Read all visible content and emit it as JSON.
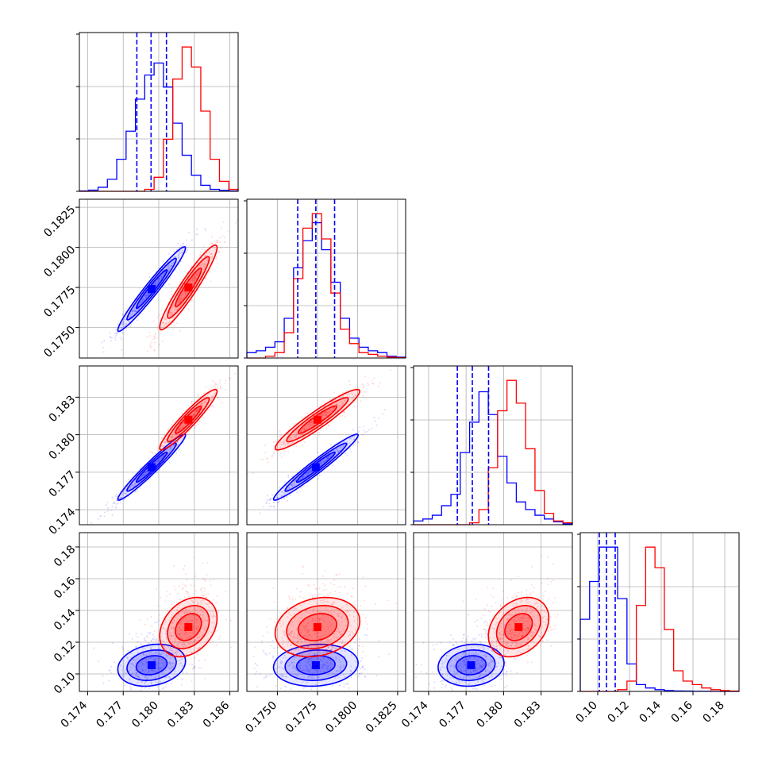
{
  "figure": {
    "colors": {
      "series_a": "#0000ff",
      "series_b": "#ff0000",
      "grid": "#b0b0b0"
    }
  },
  "chart_data": {
    "type": "corner",
    "grid": true,
    "parameters": 4,
    "series": [
      {
        "color": "#0000ff",
        "means": [
          0.1794,
          0.1774,
          0.1774,
          0.1055
        ],
        "sigmas": [
          0.0013,
          0.0012,
          0.0012,
          0.006
        ],
        "quantiles": [
          [
            0.17815,
            0.17935,
            0.18065
          ],
          [
            0.17627,
            0.1774,
            0.17857
          ],
          [
            0.1763,
            0.1775,
            0.1788
          ],
          [
            0.101,
            0.1055,
            0.111
          ]
        ],
        "correlations": {
          "1_0": 0.97,
          "2_0": 0.97,
          "2_1": 0.97,
          "3_0": 0.2,
          "3_1": 0.1,
          "3_2": 0.1
        },
        "hist": [
          [
            0.2,
            0.6,
            2,
            6,
            16,
            30,
            46,
            58,
            64,
            52,
            34,
            18,
            8,
            3,
            1,
            0.5,
            0.2
          ],
          [
            3,
            4,
            6,
            9,
            22,
            50,
            65,
            75,
            60,
            42,
            22,
            11,
            6,
            4,
            3,
            1,
            0.5
          ],
          [
            2,
            3,
            5,
            10,
            16,
            38,
            54,
            70,
            58,
            36,
            22,
            12,
            8,
            5,
            3,
            1.5,
            0.5
          ],
          [
            42,
            64,
            84,
            84,
            54,
            16,
            4,
            2,
            1,
            0.5,
            0.3,
            0.2,
            0.1,
            0.1,
            0,
            0,
            0
          ]
        ]
      },
      {
        "color": "#ff0000",
        "means": [
          0.1825,
          0.1775,
          0.1812,
          0.1295
        ],
        "sigmas": [
          0.0011,
          0.0012,
          0.0011,
          0.0085
        ],
        "quantiles": [
          [
            0.1814,
            0.1825,
            0.1836
          ],
          [
            0.1763,
            0.1775,
            0.1787
          ],
          [
            0.1801,
            0.1812,
            0.1823
          ],
          [
            0.1215,
            0.1295,
            0.138
          ]
        ],
        "correlations": {
          "1_0": 0.94,
          "2_0": 0.94,
          "2_1": 0.94,
          "3_0": 0.3,
          "3_1": 0.2,
          "3_2": 0.3
        },
        "hist": [
          [
            0,
            0,
            0,
            0,
            0,
            0,
            0,
            1,
            7,
            26,
            56,
            72,
            62,
            40,
            16,
            5,
            1
          ],
          [
            0,
            0,
            1,
            3,
            14,
            44,
            72,
            80,
            66,
            36,
            16,
            8,
            3,
            2,
            1,
            0.5,
            0.2
          ],
          [
            0,
            0,
            0,
            0,
            0,
            0,
            1,
            8,
            30,
            60,
            76,
            64,
            40,
            18,
            6,
            2,
            1
          ],
          [
            0,
            0,
            0,
            0,
            1,
            6,
            50,
            84,
            72,
            36,
            12,
            6,
            4,
            2,
            1,
            0.5,
            0.2
          ]
        ]
      }
    ],
    "x_ranges": [
      [
        0.1733,
        0.1867
      ],
      [
        0.1731,
        0.183
      ],
      [
        0.1728,
        0.1855
      ],
      [
        0.089,
        0.189
      ]
    ],
    "y_ranges": [
      [
        0.1731,
        0.183
      ],
      [
        0.1728,
        0.1855
      ],
      [
        0.089,
        0.189
      ]
    ],
    "x_ticks": [
      [
        "0.174",
        "0.177",
        "0.180",
        "0.183",
        "0.186"
      ],
      [
        "0.1750",
        "0.1775",
        "0.1800",
        "0.1825"
      ],
      [
        "0.174",
        "0.177",
        "0.180",
        "0.183"
      ],
      [
        "0.10",
        "0.12",
        "0.14",
        "0.16",
        "0.18"
      ]
    ],
    "y_ticks": [
      [
        "0.1750",
        "0.1775",
        "0.1800",
        "0.1825"
      ],
      [
        "0.174",
        "0.177",
        "0.180",
        "0.183"
      ],
      [
        "0.10",
        "0.12",
        "0.14",
        "0.16",
        "0.18"
      ]
    ]
  }
}
